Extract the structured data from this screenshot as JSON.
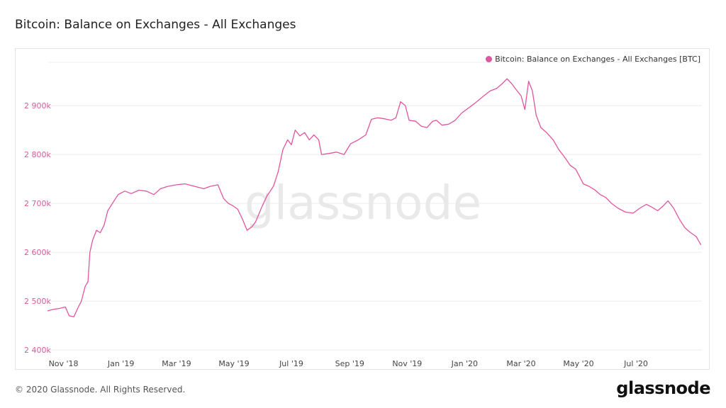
{
  "header": {
    "title": "Bitcoin: Balance on Exchanges - All Exchanges"
  },
  "footer": {
    "copyright": "© 2020 Glassnode. All Rights Reserved.",
    "brand": "glassnode"
  },
  "colors": {
    "series": "#e0559f",
    "grid": "#ececec",
    "ytick": "#d85a9c",
    "watermark": "#e9e9e9"
  },
  "chart_data": {
    "type": "line",
    "legend": "Bitcoin: Balance on Exchanges - All Exchanges [BTC]",
    "legend_position": "top-right",
    "grid": true,
    "watermark": "glassnode",
    "y_ticks": [
      {
        "value": 2400,
        "label": "2 400k"
      },
      {
        "value": 2500,
        "label": "2 500k"
      },
      {
        "value": 2600,
        "label": "2 600k"
      },
      {
        "value": 2700,
        "label": "2 700k"
      },
      {
        "value": 2800,
        "label": "2 800k"
      },
      {
        "value": 2900,
        "label": "2 900k"
      }
    ],
    "x_ticks": [
      {
        "date": "2018-11-01",
        "label": "Nov '18"
      },
      {
        "date": "2019-01-01",
        "label": "Jan '19"
      },
      {
        "date": "2019-03-01",
        "label": "Mar '19"
      },
      {
        "date": "2019-05-01",
        "label": "May '19"
      },
      {
        "date": "2019-07-01",
        "label": "Jul '19"
      },
      {
        "date": "2019-09-01",
        "label": "Sep '19"
      },
      {
        "date": "2019-11-01",
        "label": "Nov '19"
      },
      {
        "date": "2020-01-01",
        "label": "Jan '20"
      },
      {
        "date": "2020-03-01",
        "label": "Mar '20"
      },
      {
        "date": "2020-05-01",
        "label": "May '20"
      },
      {
        "date": "2020-07-01",
        "label": "Jul '20"
      }
    ],
    "x_range": [
      "2018-10-15",
      "2020-09-09"
    ],
    "ylim": [
      2390,
      2990
    ],
    "series": [
      {
        "name": "Bitcoin: Balance on Exchanges - All Exchanges [BTC]",
        "unit": "k BTC",
        "points": [
          [
            "2018-10-15",
            2480
          ],
          [
            "2018-10-21",
            2483
          ],
          [
            "2018-10-28",
            2485
          ],
          [
            "2018-11-03",
            2488
          ],
          [
            "2018-11-07",
            2470
          ],
          [
            "2018-11-12",
            2468
          ],
          [
            "2018-11-16",
            2485
          ],
          [
            "2018-11-20",
            2500
          ],
          [
            "2018-11-24",
            2530
          ],
          [
            "2018-11-27",
            2540
          ],
          [
            "2018-11-29",
            2600
          ],
          [
            "2018-12-02",
            2625
          ],
          [
            "2018-12-06",
            2645
          ],
          [
            "2018-12-10",
            2640
          ],
          [
            "2018-12-14",
            2655
          ],
          [
            "2018-12-18",
            2685
          ],
          [
            "2018-12-23",
            2700
          ],
          [
            "2018-12-29",
            2718
          ],
          [
            "2019-01-05",
            2725
          ],
          [
            "2019-01-12",
            2720
          ],
          [
            "2019-01-20",
            2727
          ],
          [
            "2019-01-28",
            2725
          ],
          [
            "2019-02-05",
            2718
          ],
          [
            "2019-02-12",
            2730
          ],
          [
            "2019-02-20",
            2735
          ],
          [
            "2019-03-01",
            2738
          ],
          [
            "2019-03-10",
            2740
          ],
          [
            "2019-03-20",
            2735
          ],
          [
            "2019-03-30",
            2730
          ],
          [
            "2019-04-06",
            2735
          ],
          [
            "2019-04-14",
            2738
          ],
          [
            "2019-04-20",
            2710
          ],
          [
            "2019-04-25",
            2700
          ],
          [
            "2019-04-30",
            2695
          ],
          [
            "2019-05-05",
            2688
          ],
          [
            "2019-05-10",
            2668
          ],
          [
            "2019-05-15",
            2645
          ],
          [
            "2019-05-20",
            2652
          ],
          [
            "2019-05-24",
            2662
          ],
          [
            "2019-05-30",
            2690
          ],
          [
            "2019-06-05",
            2715
          ],
          [
            "2019-06-12",
            2735
          ],
          [
            "2019-06-17",
            2765
          ],
          [
            "2019-06-22",
            2810
          ],
          [
            "2019-06-27",
            2830
          ],
          [
            "2019-07-01",
            2820
          ],
          [
            "2019-07-05",
            2850
          ],
          [
            "2019-07-10",
            2838
          ],
          [
            "2019-07-15",
            2845
          ],
          [
            "2019-07-20",
            2830
          ],
          [
            "2019-07-25",
            2840
          ],
          [
            "2019-07-30",
            2830
          ],
          [
            "2019-08-02",
            2800
          ],
          [
            "2019-08-10",
            2802
          ],
          [
            "2019-08-18",
            2805
          ],
          [
            "2019-08-26",
            2800
          ],
          [
            "2019-09-02",
            2822
          ],
          [
            "2019-09-10",
            2830
          ],
          [
            "2019-09-18",
            2840
          ],
          [
            "2019-09-24",
            2872
          ],
          [
            "2019-10-01",
            2875
          ],
          [
            "2019-10-08",
            2873
          ],
          [
            "2019-10-15",
            2870
          ],
          [
            "2019-10-20",
            2875
          ],
          [
            "2019-10-25",
            2908
          ],
          [
            "2019-10-30",
            2900
          ],
          [
            "2019-11-03",
            2870
          ],
          [
            "2019-11-10",
            2868
          ],
          [
            "2019-11-16",
            2858
          ],
          [
            "2019-11-22",
            2855
          ],
          [
            "2019-11-28",
            2868
          ],
          [
            "2019-12-02",
            2870
          ],
          [
            "2019-12-08",
            2860
          ],
          [
            "2019-12-15",
            2862
          ],
          [
            "2019-12-22",
            2870
          ],
          [
            "2019-12-29",
            2885
          ],
          [
            "2020-01-05",
            2895
          ],
          [
            "2020-01-12",
            2905
          ],
          [
            "2020-01-20",
            2918
          ],
          [
            "2020-01-28",
            2930
          ],
          [
            "2020-02-04",
            2935
          ],
          [
            "2020-02-10",
            2945
          ],
          [
            "2020-02-15",
            2955
          ],
          [
            "2020-02-20",
            2945
          ],
          [
            "2020-02-25",
            2932
          ],
          [
            "2020-03-01",
            2920
          ],
          [
            "2020-03-05",
            2892
          ],
          [
            "2020-03-09",
            2950
          ],
          [
            "2020-03-13",
            2930
          ],
          [
            "2020-03-17",
            2880
          ],
          [
            "2020-03-22",
            2855
          ],
          [
            "2020-03-28",
            2845
          ],
          [
            "2020-04-04",
            2830
          ],
          [
            "2020-04-10",
            2810
          ],
          [
            "2020-04-16",
            2795
          ],
          [
            "2020-04-22",
            2778
          ],
          [
            "2020-04-28",
            2770
          ],
          [
            "2020-05-02",
            2755
          ],
          [
            "2020-05-06",
            2740
          ],
          [
            "2020-05-12",
            2735
          ],
          [
            "2020-05-18",
            2728
          ],
          [
            "2020-05-24",
            2718
          ],
          [
            "2020-05-30",
            2712
          ],
          [
            "2020-06-05",
            2700
          ],
          [
            "2020-06-12",
            2690
          ],
          [
            "2020-06-20",
            2682
          ],
          [
            "2020-06-28",
            2680
          ],
          [
            "2020-07-05",
            2690
          ],
          [
            "2020-07-12",
            2698
          ],
          [
            "2020-07-18",
            2692
          ],
          [
            "2020-07-24",
            2685
          ],
          [
            "2020-07-30",
            2695
          ],
          [
            "2020-08-04",
            2705
          ],
          [
            "2020-08-10",
            2690
          ],
          [
            "2020-08-16",
            2668
          ],
          [
            "2020-08-22",
            2650
          ],
          [
            "2020-08-28",
            2640
          ],
          [
            "2020-09-03",
            2632
          ],
          [
            "2020-09-08",
            2615
          ]
        ]
      }
    ]
  }
}
